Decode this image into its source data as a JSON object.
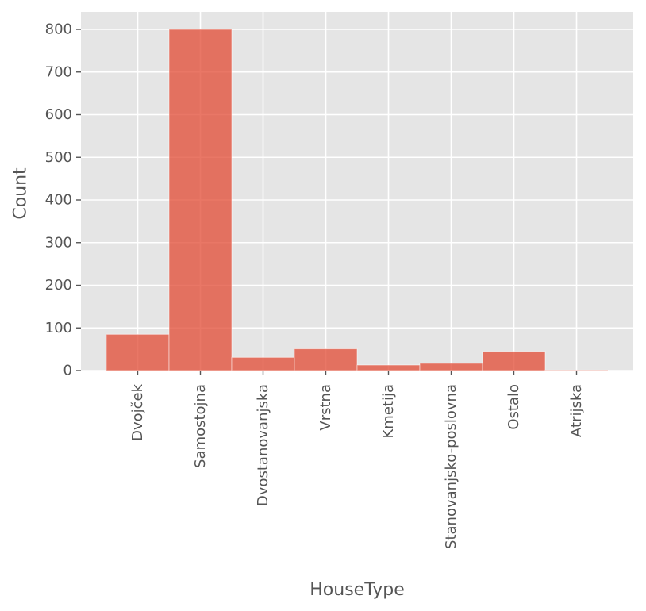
{
  "chart_data": {
    "type": "bar",
    "xlabel": "HouseType",
    "ylabel": "Count",
    "categories": [
      "Dvojček",
      "Samostojna",
      "Dvostanovanjska",
      "Vrstna",
      "Kmetija",
      "Stanovanjsko-poslovna",
      "Ostalo",
      "Atrijska"
    ],
    "values": [
      85,
      800,
      31,
      51,
      13,
      17,
      45,
      1
    ],
    "ylim": [
      0,
      840
    ],
    "yticks": [
      0,
      100,
      200,
      300,
      400,
      500,
      600,
      700,
      800
    ],
    "grid": true,
    "legend": "none",
    "colors": {
      "bar": "#E24A33",
      "plot_background": "#E5E5E5",
      "grid": "#FFFFFF",
      "text": "#555555"
    }
  }
}
